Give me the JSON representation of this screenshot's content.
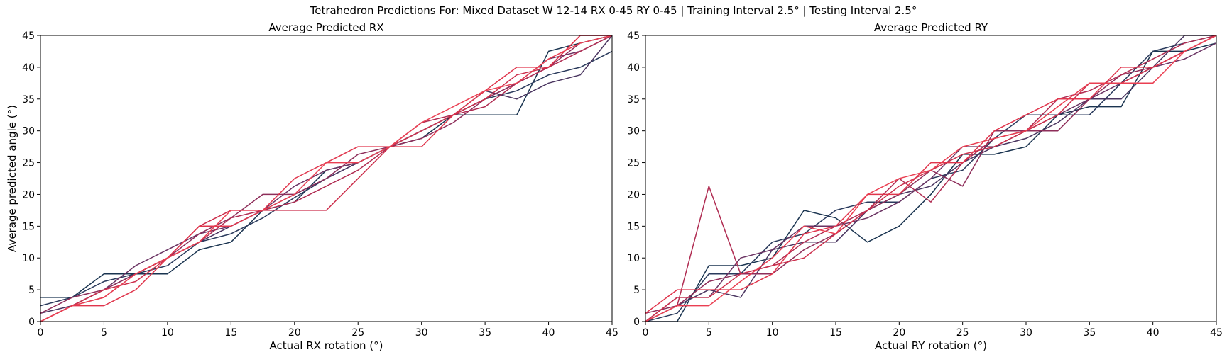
{
  "figure_title": "Tetrahedron Predictions For: Mixed Dataset W 12-14 RX 0-45 RY 0-45 | Training Interval 2.5° | Testing Interval 2.5°",
  "colors": {
    "series_palette": [
      "#1a3450",
      "#2a3a5c",
      "#4a3560",
      "#6a3262",
      "#8e2e5a",
      "#b02c52",
      "#cc2f4c",
      "#e0354c",
      "#ea3f52"
    ]
  },
  "chart_data": [
    {
      "type": "line",
      "title": "Average Predicted RX",
      "xlabel": "Actual RX rotation (°)",
      "ylabel": "Average predicted angle (°)",
      "xlim": [
        0,
        45
      ],
      "ylim": [
        0,
        45
      ],
      "xticks": [
        0,
        5,
        10,
        15,
        20,
        25,
        30,
        35,
        40,
        45
      ],
      "yticks": [
        0,
        5,
        10,
        15,
        20,
        25,
        30,
        35,
        40,
        45
      ],
      "grid": false,
      "x": [
        0,
        2.5,
        5,
        7.5,
        10,
        12.5,
        15,
        17.5,
        20,
        22.5,
        25,
        27.5,
        30,
        32.5,
        35,
        37.5,
        40,
        42.5,
        45
      ],
      "series": [
        {
          "values": [
            3.8,
            3.8,
            7.5,
            7.5,
            7.5,
            11.3,
            12.5,
            17.5,
            18.8,
            23.8,
            25.0,
            27.5,
            28.8,
            32.5,
            32.5,
            32.5,
            42.5,
            43.8,
            45.0
          ]
        },
        {
          "values": [
            2.5,
            3.8,
            6.3,
            7.5,
            8.8,
            12.5,
            13.8,
            16.3,
            19.5,
            22.5,
            25.0,
            27.5,
            30.0,
            32.5,
            35.0,
            36.3,
            38.8,
            40.0,
            42.5
          ]
        },
        {
          "values": [
            1.3,
            2.5,
            5.0,
            7.5,
            10.0,
            12.5,
            15.0,
            17.5,
            20.0,
            22.5,
            25.0,
            27.5,
            30.0,
            32.5,
            36.3,
            35.0,
            37.5,
            38.8,
            45.0
          ]
        },
        {
          "values": [
            0.0,
            2.5,
            5.0,
            8.8,
            11.3,
            13.8,
            15.0,
            17.5,
            21.3,
            23.8,
            25.0,
            27.5,
            30.0,
            32.5,
            35.0,
            37.5,
            41.3,
            42.5,
            45.0
          ]
        },
        {
          "values": [
            1.3,
            3.8,
            5.0,
            7.5,
            10.0,
            13.8,
            16.3,
            20.0,
            20.0,
            22.5,
            26.3,
            27.5,
            28.8,
            31.3,
            35.0,
            37.5,
            40.0,
            43.8,
            45.0
          ]
        },
        {
          "values": [
            0.0,
            2.5,
            3.8,
            7.5,
            10.0,
            12.5,
            16.3,
            17.5,
            18.8,
            21.3,
            23.8,
            27.5,
            31.3,
            32.5,
            33.8,
            37.5,
            40.0,
            42.5,
            45.0
          ]
        },
        {
          "values": [
            0.0,
            2.5,
            5.0,
            6.3,
            10.0,
            15.0,
            17.5,
            17.5,
            17.5,
            17.5,
            22.5,
            27.5,
            30.0,
            32.5,
            35.0,
            38.8,
            40.0,
            45.0,
            45.0
          ]
        },
        {
          "values": [
            0.0,
            2.5,
            2.5,
            5.0,
            10.0,
            15.0,
            15.0,
            17.5,
            22.5,
            25.0,
            27.5,
            27.5,
            27.5,
            32.5,
            36.3,
            40.0,
            40.0,
            45.0,
            45.0
          ]
        },
        {
          "values": [
            0.0,
            2.5,
            3.8,
            7.5,
            10.0,
            12.5,
            17.5,
            17.5,
            20.0,
            25.0,
            25.0,
            27.5,
            31.3,
            33.8,
            36.3,
            37.5,
            41.3,
            43.8,
            45.0
          ]
        }
      ]
    },
    {
      "type": "line",
      "title": "Average Predicted RY",
      "xlabel": "Actual RY rotation (°)",
      "ylabel": "",
      "xlim": [
        0,
        45
      ],
      "ylim": [
        0,
        45
      ],
      "xticks": [
        0,
        5,
        10,
        15,
        20,
        25,
        30,
        35,
        40,
        45
      ],
      "yticks": [
        0,
        5,
        10,
        15,
        20,
        25,
        30,
        35,
        40,
        45
      ],
      "grid": false,
      "x": [
        0,
        2.5,
        5,
        7.5,
        10,
        12.5,
        15,
        17.5,
        20,
        22.5,
        25,
        27.5,
        30,
        32.5,
        35,
        37.5,
        40,
        42.5,
        45
      ],
      "series": [
        {
          "values": [
            0.0,
            0.0,
            8.8,
            8.8,
            10.0,
            17.5,
            16.3,
            12.5,
            15.0,
            20.0,
            26.3,
            26.3,
            27.5,
            32.5,
            33.8,
            33.8,
            42.5,
            42.5,
            43.8
          ]
        },
        {
          "values": [
            0.0,
            1.3,
            7.5,
            7.5,
            12.5,
            13.8,
            17.5,
            18.8,
            18.8,
            22.5,
            23.8,
            28.8,
            32.5,
            32.5,
            32.5,
            37.5,
            42.5,
            43.8,
            45.0
          ]
        },
        {
          "values": [
            0.0,
            2.5,
            5.0,
            3.8,
            11.3,
            12.5,
            12.5,
            17.5,
            20.0,
            21.3,
            25.0,
            27.5,
            28.8,
            31.3,
            35.0,
            35.0,
            40.0,
            45.0,
            45.0
          ]
        },
        {
          "values": [
            0.0,
            3.8,
            3.8,
            10.0,
            11.3,
            15.0,
            15.0,
            16.3,
            18.8,
            22.5,
            27.5,
            27.5,
            30.0,
            32.5,
            35.0,
            37.5,
            40.0,
            41.3,
            43.8
          ]
        },
        {
          "values": [
            1.3,
            2.5,
            6.3,
            7.5,
            7.5,
            11.3,
            13.8,
            17.5,
            20.0,
            23.8,
            21.3,
            30.0,
            30.0,
            30.0,
            35.0,
            38.8,
            40.0,
            42.5,
            45.0
          ]
        },
        {
          "values": [
            0.0,
            2.5,
            21.3,
            7.5,
            8.8,
            12.5,
            15.0,
            17.5,
            22.5,
            18.8,
            25.0,
            28.8,
            30.0,
            35.0,
            36.3,
            38.8,
            41.3,
            43.8,
            45.0
          ]
        },
        {
          "values": [
            0.0,
            3.8,
            3.8,
            7.5,
            8.8,
            10.0,
            13.8,
            17.5,
            21.3,
            23.8,
            26.3,
            27.5,
            30.0,
            32.5,
            37.5,
            37.5,
            40.0,
            42.5,
            45.0
          ]
        },
        {
          "values": [
            1.3,
            5.0,
            5.0,
            5.0,
            7.5,
            13.8,
            15.0,
            20.0,
            20.0,
            25.0,
            25.0,
            30.0,
            32.5,
            35.0,
            35.0,
            40.0,
            40.0,
            42.5,
            45.0
          ]
        },
        {
          "values": [
            0.0,
            2.5,
            2.5,
            6.3,
            10.0,
            15.0,
            13.8,
            20.0,
            22.5,
            23.8,
            27.5,
            28.8,
            30.0,
            33.8,
            37.5,
            37.5,
            37.5,
            42.5,
            45.0
          ]
        }
      ]
    }
  ]
}
